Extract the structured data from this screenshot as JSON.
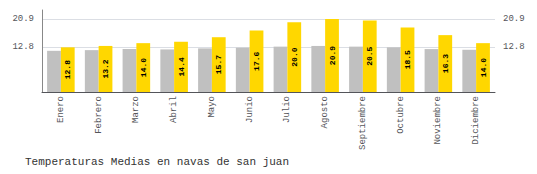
{
  "chart_data": {
    "type": "bar",
    "title": "Temperaturas Medias en navas de san juan",
    "categories": [
      "Enero",
      "Febrero",
      "Marzo",
      "Abril",
      "Mayo",
      "Junio",
      "Julio",
      "Agosto",
      "Septiembre",
      "Octubre",
      "Noviembre",
      "Diciembre"
    ],
    "series": [
      {
        "color": "#C0C0C0",
        "values": [
          11.8,
          12.0,
          12.3,
          12.2,
          12.5,
          12.7,
          13.0,
          13.2,
          13.0,
          12.8,
          12.3,
          12.1
        ]
      },
      {
        "color": "#FFD700",
        "values": [
          12.8,
          13.2,
          14.0,
          14.4,
          15.7,
          17.6,
          20.0,
          20.9,
          20.5,
          18.5,
          16.3,
          14.0
        ],
        "value_labels": [
          "12.8",
          "13.2",
          "14.0",
          "14.4",
          "15.7",
          "17.6",
          "20.0",
          "20.9",
          "20.5",
          "18.5",
          "16.3",
          "14.0"
        ],
        "data_labels": true
      }
    ],
    "ylim": [
      0,
      23.5
    ],
    "yticks": [
      12.8,
      20.9
    ],
    "grid": true
  }
}
